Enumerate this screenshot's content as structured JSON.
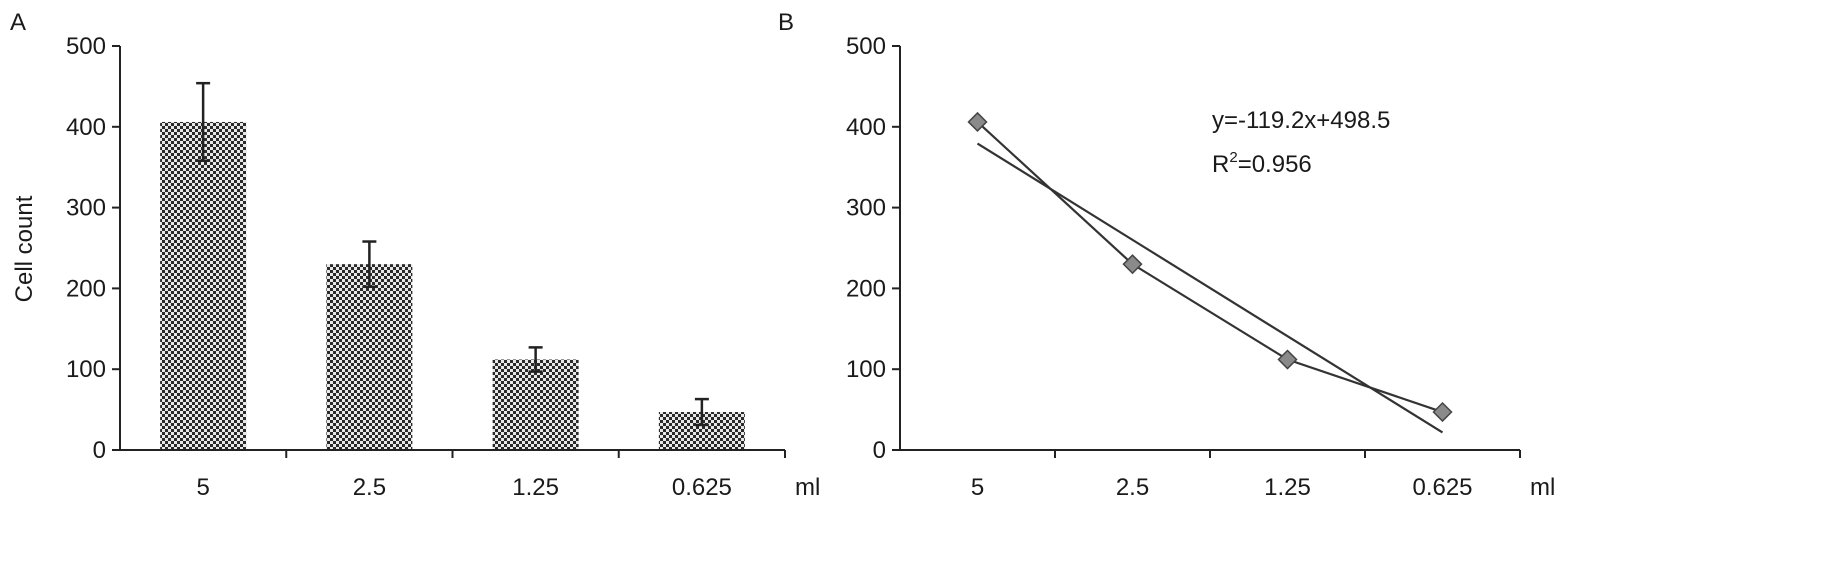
{
  "chart_data": [
    {
      "type": "bar",
      "panel_label": "A",
      "categories": [
        "5",
        "2.5",
        "1.25",
        "0.625"
      ],
      "values": [
        406,
        230,
        112,
        47
      ],
      "error": [
        48,
        28,
        15,
        16
      ],
      "x_unit": "ml",
      "ylabel": "Cell count",
      "ylim": [
        0,
        500
      ],
      "yticks": [
        0,
        100,
        200,
        300,
        400,
        500
      ],
      "bar_pattern": "checkered",
      "bar_color": "#2a2a2a"
    },
    {
      "type": "line",
      "panel_label": "B",
      "categories": [
        "5",
        "2.5",
        "1.25",
        "0.625"
      ],
      "values": [
        406,
        230,
        112,
        47
      ],
      "x_unit": "ml",
      "ylim": [
        0,
        500
      ],
      "yticks": [
        0,
        100,
        200,
        300,
        400,
        500
      ],
      "marker": "diamond",
      "marker_color": "#8a8a8a",
      "trendline": {
        "slope": -119.2,
        "intercept": 498.5,
        "equation": "y=-119.2x+498.5",
        "r2_prefix": "R",
        "r2_sup": "2",
        "r2_value": "=0.956"
      }
    }
  ]
}
